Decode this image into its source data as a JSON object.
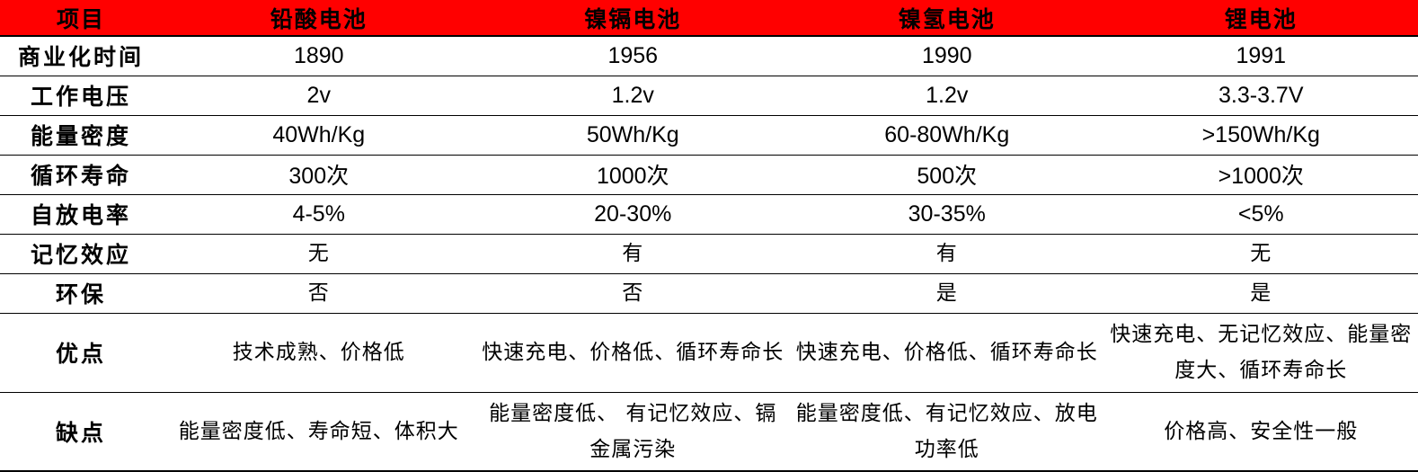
{
  "colors": {
    "header_bg": "#ff0000",
    "text": "#000000",
    "rules": "#000000"
  },
  "header": [
    "项目",
    "铅酸电池",
    "镍镉电池",
    "镍氢电池",
    "锂电池"
  ],
  "rows": [
    {
      "label": "商业化时间",
      "values": [
        "1890",
        "1956",
        "1990",
        "1991"
      ]
    },
    {
      "label": "工作电压",
      "values": [
        "2v",
        "1.2v",
        "1.2v",
        "3.3-3.7V"
      ]
    },
    {
      "label": "能量密度",
      "values": [
        "40Wh/Kg",
        "50Wh/Kg",
        "60-80Wh/Kg",
        ">150Wh/Kg"
      ]
    },
    {
      "label": "循环寿命",
      "values": [
        "300次",
        "1000次",
        "500次",
        ">1000次"
      ]
    },
    {
      "label": "自放电率",
      "values": [
        "4-5%",
        "20-30%",
        "30-35%",
        "<5%"
      ]
    },
    {
      "label": "记忆效应",
      "values": [
        "无",
        "有",
        "有",
        "无"
      ]
    },
    {
      "label": "环保",
      "values": [
        "否",
        "否",
        "是",
        "是"
      ]
    },
    {
      "label": "优点",
      "values": [
        "技术成熟、价格低",
        "快速充电、价格低、循环寿命长",
        "快速充电、价格低、循环寿命长",
        "快速充电、无记忆效应、能量密度大、循环寿命长"
      ]
    },
    {
      "label": "缺点",
      "values": [
        "能量密度低、寿命短、体积大",
        "能量密度低、 有记忆效应、镉金属污染",
        "能量密度低、有记忆效应、放电功率低",
        "价格高、安全性一般"
      ]
    }
  ]
}
